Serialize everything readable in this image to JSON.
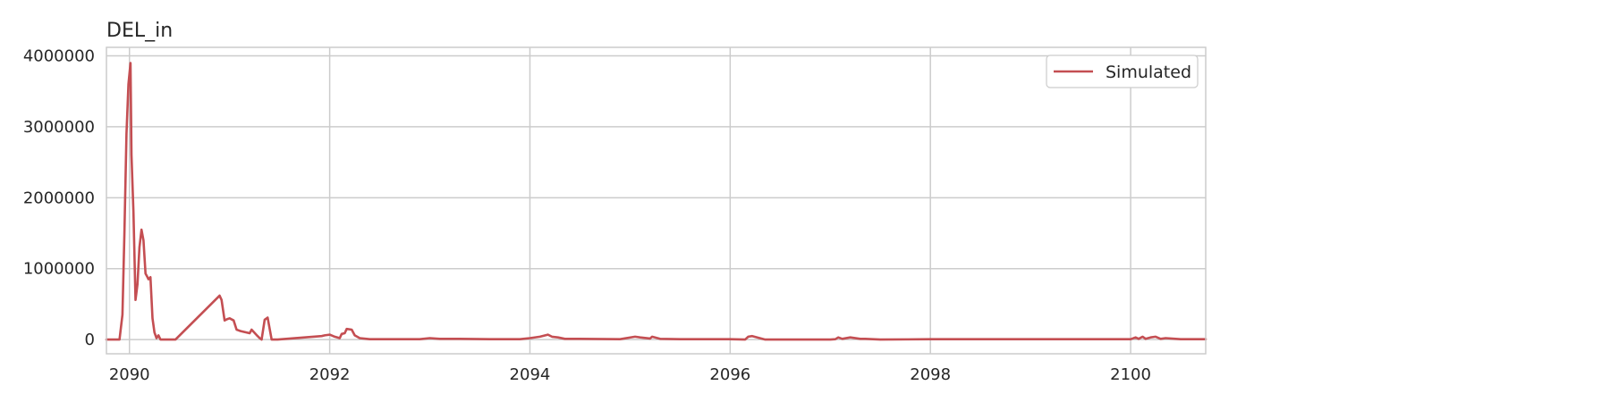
{
  "chart_data": {
    "type": "line",
    "title": "DEL_in",
    "xlabel": "",
    "ylabel": "",
    "xlim": [
      2089.77,
      2100.75
    ],
    "ylim": [
      -200000,
      4120000
    ],
    "xticks": [
      2090,
      2092,
      2094,
      2096,
      2098,
      2100
    ],
    "xtick_labels": [
      "2090",
      "2092",
      "2094",
      "2096",
      "2098",
      "2100"
    ],
    "yticks": [
      0,
      1000000,
      2000000,
      3000000,
      4000000
    ],
    "ytick_labels": [
      "0",
      "1000000",
      "2000000",
      "3000000",
      "4000000"
    ],
    "grid": true,
    "legend": {
      "position": "top-right",
      "entries": [
        "Simulated"
      ]
    },
    "series": [
      {
        "name": "Simulated",
        "color": "#c44e52",
        "x": [
          2089.77,
          2089.9,
          2089.93,
          2089.95,
          2089.97,
          2089.99,
          2090.01,
          2090.02,
          2090.04,
          2090.06,
          2090.08,
          2090.1,
          2090.12,
          2090.14,
          2090.16,
          2090.18,
          2090.19,
          2090.21,
          2090.23,
          2090.25,
          2090.27,
          2090.29,
          2090.31,
          2090.33,
          2090.35,
          2090.37,
          2090.4,
          2090.42,
          2090.44,
          2090.46,
          2090.9,
          2090.92,
          2090.95,
          2090.98,
          2091.0,
          2091.04,
          2091.07,
          2091.09,
          2091.11,
          2091.2,
          2091.22,
          2091.28,
          2091.3,
          2091.32,
          2091.35,
          2091.38,
          2091.42,
          2091.44,
          2091.46,
          2091.48,
          2091.92,
          2091.95,
          2092.0,
          2092.05,
          2092.1,
          2092.12,
          2092.15,
          2092.17,
          2092.22,
          2092.25,
          2092.3,
          2092.4,
          2092.9,
          2093.0,
          2093.1,
          2093.3,
          2093.6,
          2093.9,
          2094.0,
          2094.1,
          2094.18,
          2094.22,
          2094.28,
          2094.35,
          2094.5,
          2094.9,
          2095.05,
          2095.1,
          2095.2,
          2095.22,
          2095.3,
          2095.5,
          2096.0,
          2096.15,
          2096.18,
          2096.22,
          2096.35,
          2097.0,
          2097.05,
          2097.08,
          2097.12,
          2097.2,
          2097.3,
          2097.35,
          2097.5,
          2098.0,
          2098.2,
          2098.5,
          2099.0,
          2099.3,
          2099.6,
          2100.0,
          2100.05,
          2100.08,
          2100.12,
          2100.15,
          2100.2,
          2100.25,
          2100.3,
          2100.35,
          2100.5,
          2100.75
        ],
        "values": [
          0,
          0,
          350000,
          1500000,
          2900000,
          3600000,
          3900000,
          2600000,
          1800000,
          560000,
          780000,
          1300000,
          1550000,
          1400000,
          930000,
          880000,
          850000,
          880000,
          300000,
          100000,
          20000,
          60000,
          0,
          0,
          0,
          0,
          0,
          0,
          0,
          0,
          620000,
          560000,
          270000,
          290000,
          300000,
          270000,
          140000,
          130000,
          120000,
          90000,
          140000,
          50000,
          20000,
          0,
          280000,
          310000,
          0,
          0,
          0,
          0,
          50000,
          60000,
          70000,
          40000,
          20000,
          80000,
          90000,
          150000,
          140000,
          60000,
          20000,
          5000,
          5000,
          20000,
          10000,
          10000,
          5000,
          5000,
          20000,
          40000,
          70000,
          40000,
          30000,
          10000,
          10000,
          5000,
          40000,
          30000,
          15000,
          40000,
          10000,
          5000,
          5000,
          0,
          40000,
          50000,
          0,
          0,
          5000,
          30000,
          10000,
          30000,
          10000,
          10000,
          0,
          5000,
          5000,
          5000,
          5000,
          5000,
          5000,
          5000,
          30000,
          10000,
          40000,
          10000,
          30000,
          40000,
          10000,
          20000,
          5000,
          5000
        ]
      }
    ]
  }
}
